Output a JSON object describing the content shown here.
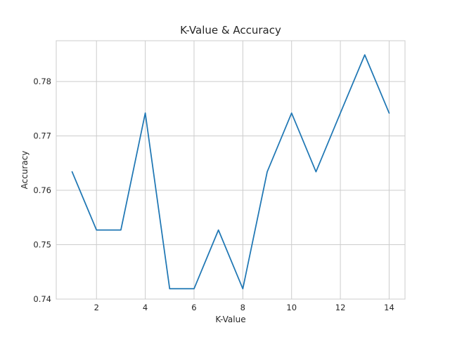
{
  "chart_data": {
    "type": "line",
    "title": "K-Value & Accuracy",
    "xlabel": "K-Value",
    "ylabel": "Accuracy",
    "xlim": [
      0.35,
      14.65
    ],
    "ylim": [
      0.74,
      0.7875
    ],
    "xticks": [
      2,
      4,
      6,
      8,
      10,
      12,
      14
    ],
    "yticks": [
      0.74,
      0.75,
      0.76,
      0.77,
      0.78
    ],
    "ytick_labels": [
      "0.74",
      "0.75",
      "0.76",
      "0.77",
      "0.78"
    ],
    "grid": true,
    "colors": {
      "line": "#1f77b4",
      "grid": "#cccccc"
    },
    "series": [
      {
        "x": [
          1,
          2,
          3,
          4,
          5,
          6,
          7,
          8,
          9,
          10,
          11,
          12,
          13,
          14
        ],
        "values": [
          0.7634,
          0.7527,
          0.7527,
          0.7742,
          0.7419,
          0.7419,
          0.7527,
          0.7419,
          0.7634,
          0.7742,
          0.7634,
          0.7742,
          0.7849,
          0.7742
        ]
      }
    ]
  }
}
